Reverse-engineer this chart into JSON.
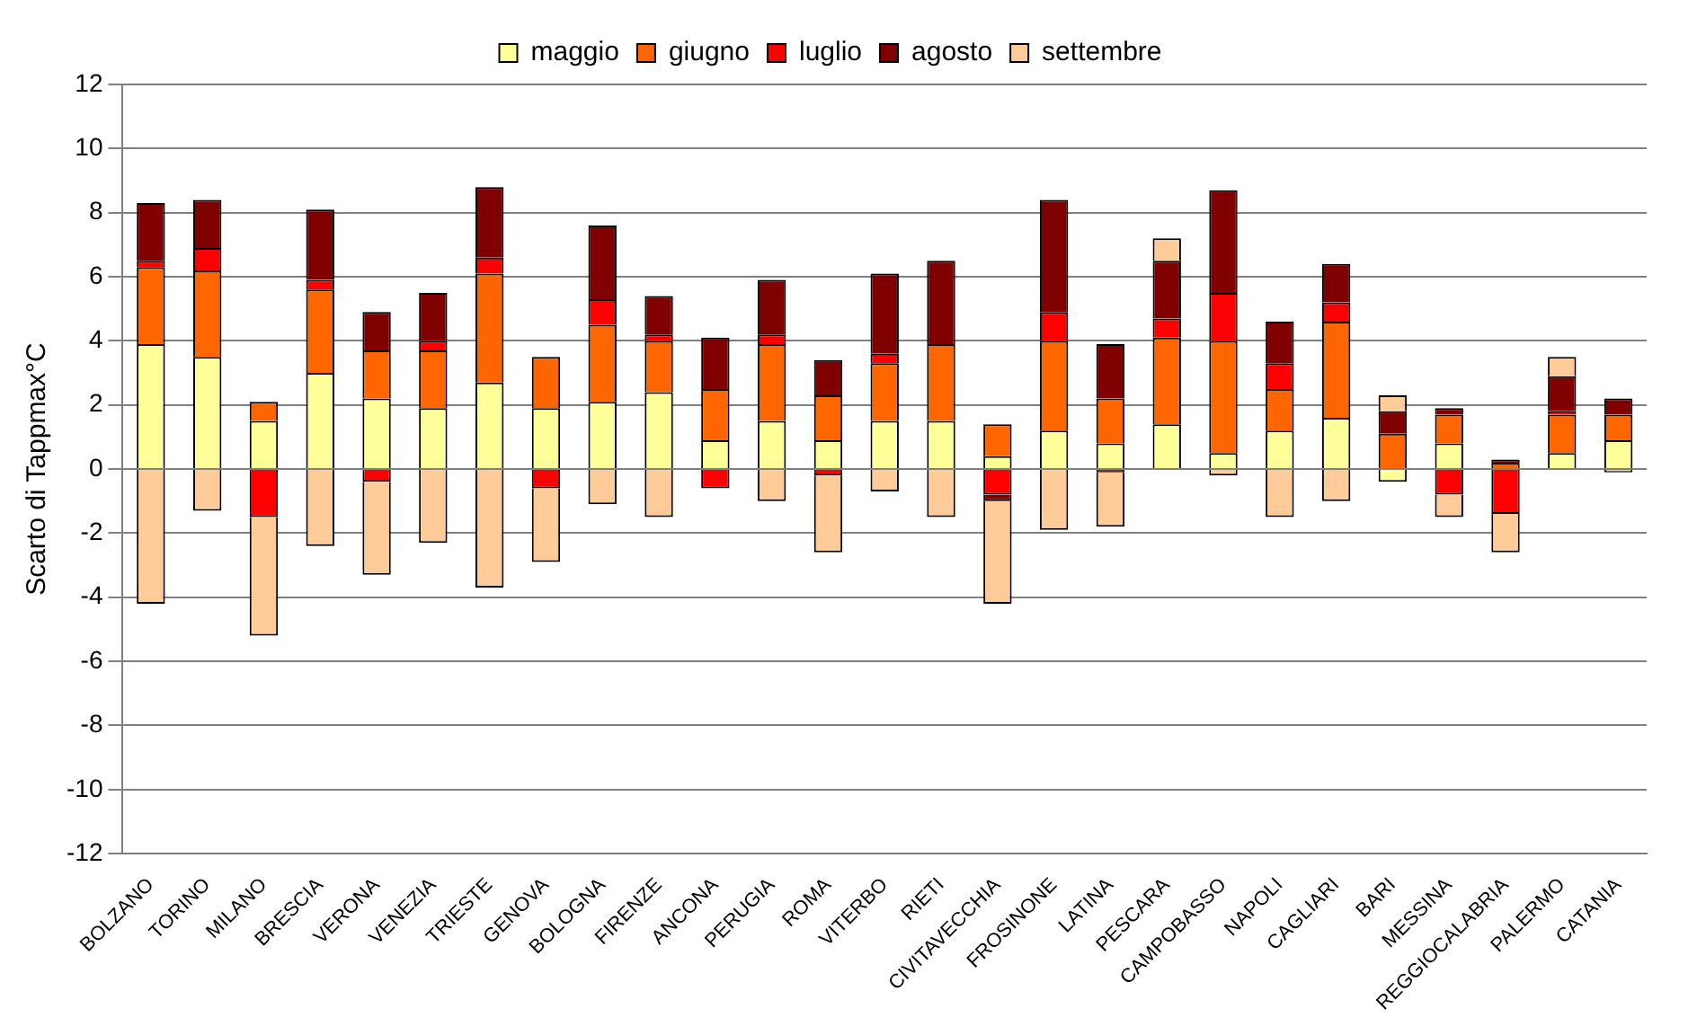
{
  "chart_data": {
    "type": "bar",
    "stacked": true,
    "ylabel": "Scarto di Tappmax°C",
    "categories": [
      "BOLZANO",
      "TORINO",
      "MILANO",
      "BRESCIA",
      "VERONA",
      "VENEZIA",
      "TRIESTE",
      "GENOVA",
      "BOLOGNA",
      "FIRENZE",
      "ANCONA",
      "PERUGIA",
      "ROMA",
      "VITERBO",
      "RIETI",
      "CIVITAVECCHIA",
      "FROSINONE",
      "LATINA",
      "PESCARA",
      "CAMPOBASSO",
      "NAPOLI",
      "CAGLIARI",
      "BARI",
      "MESSINA",
      "REGGIOCALABRIA",
      "PALERMO",
      "CATANIA"
    ],
    "series": [
      {
        "name": "maggio",
        "color": "#ffff99",
        "values": [
          3.9,
          3.5,
          1.5,
          3.0,
          2.2,
          1.9,
          2.7,
          1.9,
          2.1,
          2.4,
          0.9,
          1.5,
          0.9,
          1.5,
          1.5,
          0.4,
          1.2,
          0.8,
          1.4,
          0.5,
          1.2,
          1.6,
          -0.4,
          0.8,
          0.0,
          0.5,
          0.9
        ]
      },
      {
        "name": "giugno",
        "color": "#ff6600",
        "values": [
          2.4,
          2.7,
          0.6,
          2.6,
          1.5,
          1.8,
          3.4,
          1.6,
          2.4,
          1.6,
          1.6,
          2.4,
          1.4,
          1.8,
          2.4,
          1.0,
          2.8,
          1.4,
          2.7,
          3.5,
          1.3,
          3.0,
          1.1,
          0.9,
          0.2,
          1.2,
          0.8
        ]
      },
      {
        "name": "luglio",
        "color": "#ff0000",
        "values": [
          0.2,
          0.7,
          -1.5,
          0.3,
          -0.4,
          0.3,
          0.5,
          -0.6,
          0.8,
          0.2,
          -0.6,
          0.3,
          -0.2,
          0.3,
          0.0,
          -0.8,
          0.9,
          -0.1,
          0.6,
          1.5,
          0.8,
          0.6,
          0.0,
          -0.8,
          -1.4,
          0.1,
          0.0
        ]
      },
      {
        "name": "agosto",
        "color": "#800000",
        "values": [
          1.8,
          1.5,
          0.0,
          2.2,
          1.2,
          1.5,
          2.2,
          0.0,
          2.3,
          1.2,
          1.6,
          1.7,
          1.1,
          2.5,
          2.6,
          -0.2,
          3.5,
          1.7,
          1.8,
          3.2,
          1.3,
          1.2,
          0.7,
          0.2,
          0.1,
          1.1,
          0.5
        ]
      },
      {
        "name": "settembre",
        "color": "#ffcc99",
        "values": [
          -4.2,
          -1.3,
          -3.7,
          -2.4,
          -2.9,
          -2.3,
          -3.7,
          -2.3,
          -1.1,
          -1.5,
          0.0,
          -1.0,
          -2.4,
          -0.7,
          -1.5,
          -3.2,
          -1.9,
          -1.7,
          0.7,
          -0.2,
          -1.5,
          -1.0,
          0.5,
          -0.7,
          -1.2,
          0.6,
          -0.1
        ]
      }
    ],
    "ylim": [
      -12,
      12
    ],
    "yticks": [
      -12,
      -10,
      -8,
      -6,
      -4,
      -2,
      0,
      2,
      4,
      6,
      8,
      10,
      12
    ],
    "grid": "y",
    "legend": "top"
  }
}
